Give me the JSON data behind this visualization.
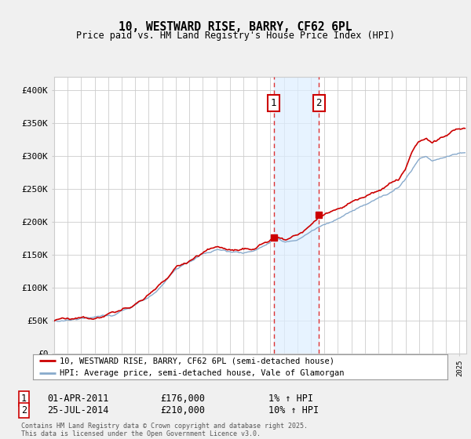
{
  "title": "10, WESTWARD RISE, BARRY, CF62 6PL",
  "subtitle": "Price paid vs. HM Land Registry's House Price Index (HPI)",
  "legend_line1": "10, WESTWARD RISE, BARRY, CF62 6PL (semi-detached house)",
  "legend_line2": "HPI: Average price, semi-detached house, Vale of Glamorgan",
  "sale1_date": "01-APR-2011",
  "sale1_price": "£176,000",
  "sale1_hpi": "1% ↑ HPI",
  "sale1_year": 2011.25,
  "sale1_value": 176000,
  "sale2_date": "25-JUL-2014",
  "sale2_price": "£210,000",
  "sale2_hpi": "10% ↑ HPI",
  "sale2_year": 2014.58,
  "sale2_value": 210000,
  "footnote1": "Contains HM Land Registry data © Crown copyright and database right 2025.",
  "footnote2": "This data is licensed under the Open Government Licence v3.0.",
  "ylim": [
    0,
    420000
  ],
  "xlim": [
    1995.0,
    2025.5
  ],
  "yticks": [
    0,
    50000,
    100000,
    150000,
    200000,
    250000,
    300000,
    350000,
    400000
  ],
  "ytick_labels": [
    "£0",
    "£50K",
    "£100K",
    "£150K",
    "£200K",
    "£250K",
    "£300K",
    "£350K",
    "£400K"
  ],
  "line_color_red": "#cc0000",
  "line_color_blue": "#88aacc",
  "shade_color": "#ddeeff",
  "vline_color": "#dd3333",
  "marker_box_color": "#cc0000",
  "bg_color": "#f0f0f0",
  "plot_bg_color": "#ffffff",
  "grid_color": "#cccccc"
}
